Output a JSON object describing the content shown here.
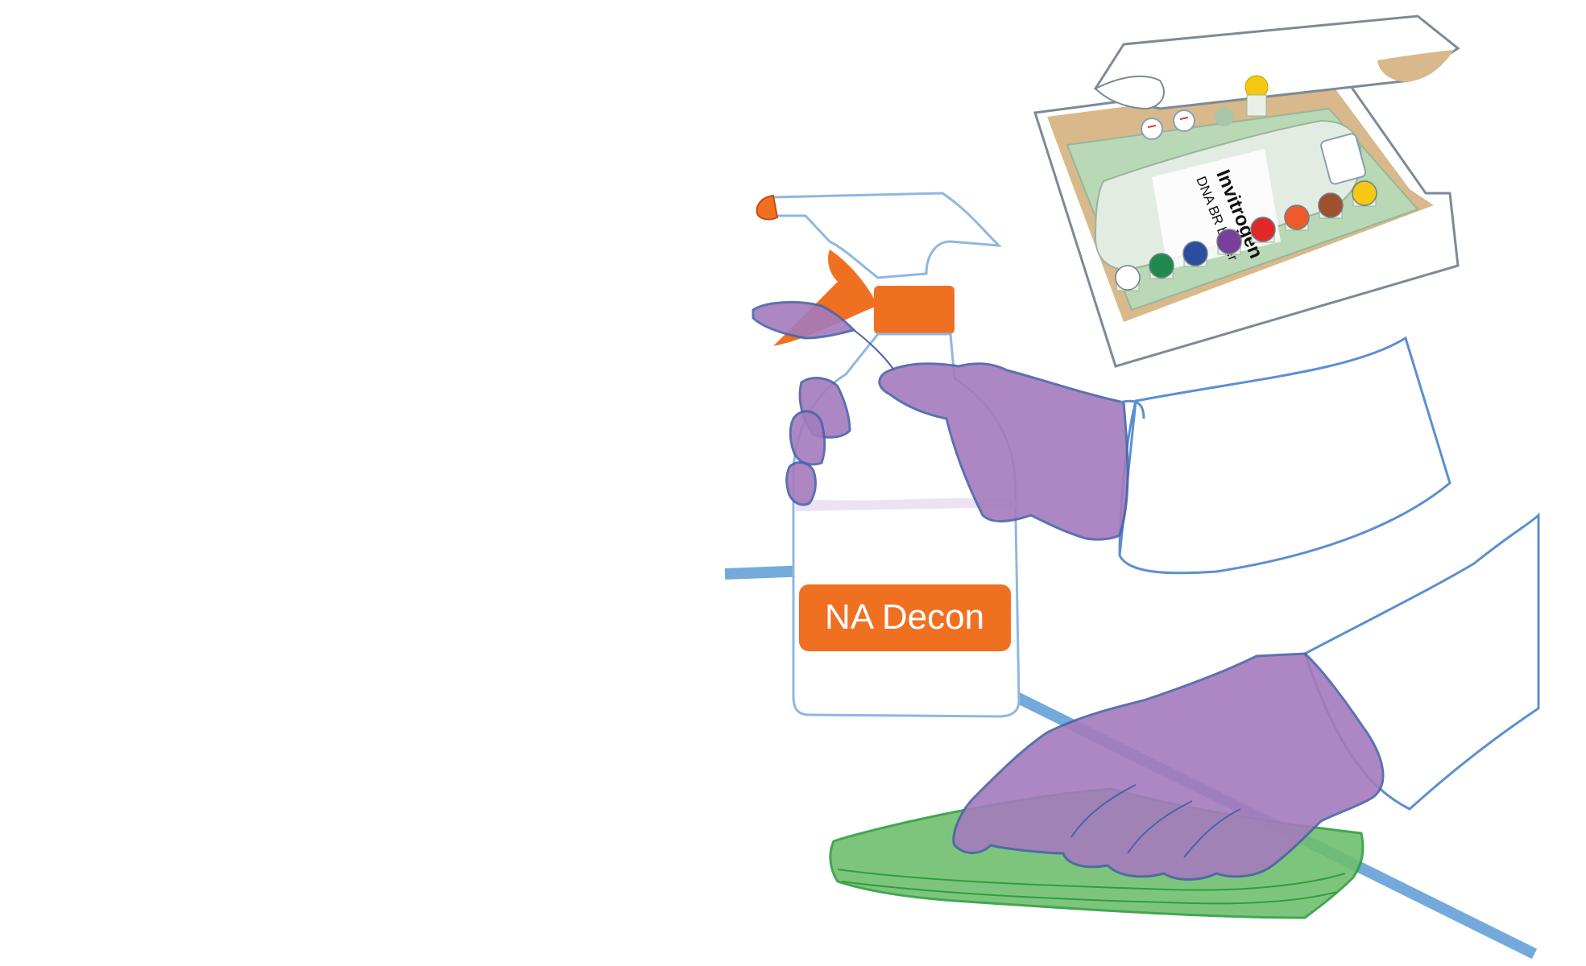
{
  "bottle": {
    "label": "NA Decon"
  },
  "kit": {
    "brand": "Invitrogen",
    "product": "DNA BR buffer"
  },
  "colors": {
    "glove": "#a57bbd",
    "glove_outline": "#4a63a8",
    "cloth": "#6fbf6f",
    "cloth_outline": "#2e9e3e",
    "nozzle": "#f07022",
    "bench_line": "#5b9bd5",
    "box_tray": "#b9d8b5",
    "box_inner": "#d9b98c"
  },
  "vial_caps": [
    {
      "name": "white-cap",
      "color": "#ffffff"
    },
    {
      "name": "green-cap",
      "color": "#1f8a4c"
    },
    {
      "name": "blue-cap",
      "color": "#2a4d9e"
    },
    {
      "name": "purple-cap",
      "color": "#7a3f9a"
    },
    {
      "name": "red-cap",
      "color": "#e02828"
    },
    {
      "name": "orange-cap",
      "color": "#ef5a2a"
    },
    {
      "name": "brown-cap",
      "color": "#a1502d"
    },
    {
      "name": "yellow-cap",
      "color": "#f5c812"
    }
  ]
}
